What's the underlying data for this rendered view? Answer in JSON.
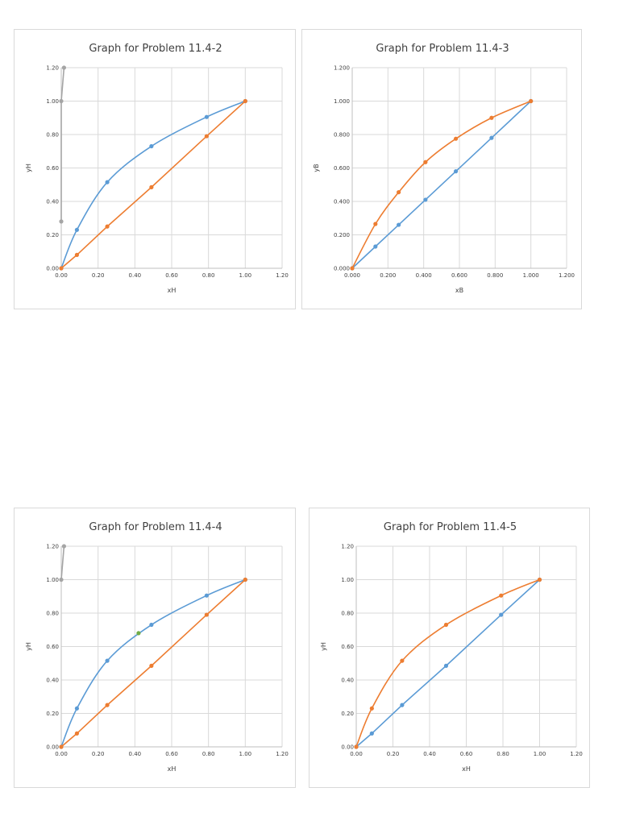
{
  "chart_data": [
    {
      "type": "scatter",
      "title": "Graph for Problem 11.4-2",
      "xlabel": "xH",
      "ylabel": "yH",
      "xlim": [
        0,
        1.2
      ],
      "ylim": [
        0,
        1.2
      ],
      "xticks": [
        "0.00",
        "0.20",
        "0.40",
        "0.60",
        "0.80",
        "1.00",
        "1.20"
      ],
      "yticks": [
        "0.00",
        "0.20",
        "0.40",
        "0.60",
        "0.80",
        "1.00",
        "1.20"
      ],
      "grid": true,
      "series": [
        {
          "color": "#5b9bd5",
          "smooth": true,
          "x": [
            0,
            0.085,
            0.25,
            0.49,
            0.79,
            1.0
          ],
          "y": [
            0,
            0.23,
            0.515,
            0.73,
            0.905,
            1.0
          ]
        },
        {
          "color": "#ed7d31",
          "smooth": false,
          "x": [
            0,
            0.085,
            0.25,
            0.49,
            0.79,
            1.0
          ],
          "y": [
            0,
            0.08,
            0.25,
            0.485,
            0.79,
            1.0
          ]
        },
        {
          "color": "#a5a5a5",
          "smooth": false,
          "x": [
            0,
            0,
            0.015
          ],
          "y": [
            0.28,
            1.0,
            1.2
          ]
        }
      ]
    },
    {
      "type": "scatter",
      "title": "Graph for Problem 11.4-3",
      "xlabel": "xB",
      "ylabel": "yB",
      "xlim": [
        0,
        1.2
      ],
      "ylim": [
        0,
        1.2
      ],
      "xticks": [
        "0.000",
        "0.200",
        "0.400",
        "0.600",
        "0.800",
        "1.000",
        "1.200"
      ],
      "yticks": [
        "0.000",
        "0.200",
        "0.400",
        "0.600",
        "0.800",
        "1.000",
        "1.200"
      ],
      "grid": true,
      "series": [
        {
          "color": "#5b9bd5",
          "smooth": false,
          "x": [
            0,
            0.13,
            0.26,
            0.41,
            0.58,
            0.78,
            1.0
          ],
          "y": [
            0,
            0.13,
            0.26,
            0.41,
            0.58,
            0.78,
            1.0
          ]
        },
        {
          "color": "#ed7d31",
          "smooth": true,
          "x": [
            0,
            0.13,
            0.26,
            0.41,
            0.58,
            0.78,
            1.0
          ],
          "y": [
            0,
            0.265,
            0.455,
            0.635,
            0.775,
            0.9,
            1.0
          ]
        }
      ]
    },
    {
      "type": "scatter",
      "title": "Graph for Problem 11.4-4",
      "xlabel": "xH",
      "ylabel": "yH",
      "xlim": [
        0,
        1.2
      ],
      "ylim": [
        0,
        1.2
      ],
      "xticks": [
        "0.00",
        "0.20",
        "0.40",
        "0.60",
        "0.80",
        "1.00",
        "1.20"
      ],
      "yticks": [
        "0.00",
        "0.20",
        "0.40",
        "0.60",
        "0.80",
        "1.00",
        "1.20"
      ],
      "grid": true,
      "series": [
        {
          "color": "#5b9bd5",
          "smooth": true,
          "x": [
            0,
            0.085,
            0.25,
            0.49,
            0.79,
            1.0
          ],
          "y": [
            0,
            0.23,
            0.515,
            0.73,
            0.905,
            1.0
          ]
        },
        {
          "color": "#ed7d31",
          "smooth": false,
          "x": [
            0,
            0.085,
            0.25,
            0.49,
            0.79,
            1.0
          ],
          "y": [
            0,
            0.08,
            0.25,
            0.485,
            0.79,
            1.0
          ]
        },
        {
          "color": "#a5a5a5",
          "smooth": false,
          "x": [
            0,
            0.015
          ],
          "y": [
            1.0,
            1.2
          ]
        },
        {
          "color": "#70ad47",
          "smooth": false,
          "marker_only": true,
          "x": [
            0.42
          ],
          "y": [
            0.68
          ]
        }
      ]
    },
    {
      "type": "scatter",
      "title": "Graph for Problem 11.4-5",
      "xlabel": "xH",
      "ylabel": "yH",
      "xlim": [
        0,
        1.2
      ],
      "ylim": [
        0,
        1.2
      ],
      "xticks": [
        "0.00",
        "0.20",
        "0.40",
        "0.60",
        "0.80",
        "1.00",
        "1.20"
      ],
      "yticks": [
        "0.00",
        "0.20",
        "0.40",
        "0.60",
        "0.80",
        "1.00",
        "1.20"
      ],
      "grid": true,
      "series": [
        {
          "color": "#5b9bd5",
          "smooth": false,
          "x": [
            0,
            0.085,
            0.25,
            0.49,
            0.79,
            1.0
          ],
          "y": [
            0,
            0.08,
            0.25,
            0.485,
            0.79,
            1.0
          ]
        },
        {
          "color": "#ed7d31",
          "smooth": true,
          "x": [
            0,
            0.085,
            0.25,
            0.49,
            0.79,
            1.0
          ],
          "y": [
            0,
            0.23,
            0.515,
            0.73,
            0.905,
            1.0
          ]
        }
      ]
    }
  ]
}
